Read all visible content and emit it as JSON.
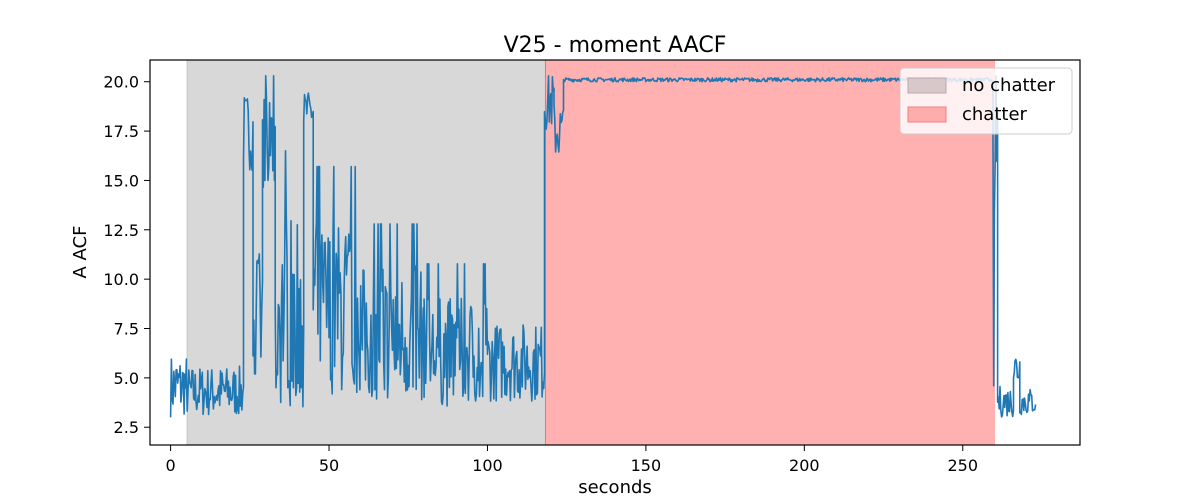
{
  "chart_data": {
    "type": "line",
    "title": "V25 - moment AACF",
    "xlabel": "seconds",
    "ylabel": "A ACF",
    "xlim": [
      -6.5,
      287
    ],
    "ylim": [
      1.6,
      21.1
    ],
    "xticks": [
      0,
      50,
      100,
      150,
      200,
      250
    ],
    "yticks": [
      2.5,
      5.0,
      7.5,
      10.0,
      12.5,
      15.0,
      17.5,
      20.0
    ],
    "ytick_labels": [
      "2.5",
      "5.0",
      "7.5",
      "10.0",
      "12.5",
      "15.0",
      "17.5",
      "20.0"
    ],
    "grid": false,
    "legend_position": "top-right",
    "regions": [
      {
        "name": "no chatter",
        "x_start": 5.2,
        "x_end": 118.3,
        "color": "#d8d8d8"
      },
      {
        "name": "chatter",
        "x_start": 118.3,
        "x_end": 260.2,
        "color": "#ffb0b0"
      }
    ],
    "series": [
      {
        "color": "#1f77b4",
        "x_range": [
          0,
          273
        ],
        "segments": [
          {
            "x0": 0,
            "x1": 5,
            "center": 4.6,
            "amplitude": 1.6
          },
          {
            "x0": 5,
            "x1": 23,
            "center": 4.3,
            "amplitude": 1.3
          },
          {
            "x0": 23,
            "x1": 26,
            "center": 17.5,
            "amplitude": 2.0
          },
          {
            "x0": 26,
            "x1": 29,
            "center": 8.0,
            "amplitude": 3.5
          },
          {
            "x0": 29,
            "x1": 33,
            "center": 17.0,
            "amplitude": 2.5
          },
          {
            "x0": 33,
            "x1": 42,
            "center": 8.5,
            "amplitude": 5.0
          },
          {
            "x0": 42,
            "x1": 45,
            "center": 18.5,
            "amplitude": 1.0
          },
          {
            "x0": 45,
            "x1": 60,
            "center": 8.5,
            "amplitude": 4.5
          },
          {
            "x0": 60,
            "x1": 80,
            "center": 7.2,
            "amplitude": 3.5
          },
          {
            "x0": 80,
            "x1": 100,
            "center": 6.3,
            "amplitude": 2.8
          },
          {
            "x0": 100,
            "x1": 118,
            "center": 5.8,
            "amplitude": 2.0
          },
          {
            "x0": 118,
            "x1": 121,
            "center": 19.0,
            "amplitude": 1.5
          },
          {
            "x0": 121,
            "x1": 124,
            "center": 17.5,
            "amplitude": 1.5
          },
          {
            "x0": 124,
            "x1": 259.5,
            "center": 20.1,
            "amplitude": 0.1
          },
          {
            "x0": 259.5,
            "x1": 261,
            "center": 11.0,
            "amplitude": 8.0
          },
          {
            "x0": 261,
            "x1": 266,
            "center": 3.8,
            "amplitude": 0.8
          },
          {
            "x0": 266,
            "x1": 268,
            "center": 5.5,
            "amplitude": 1.0
          },
          {
            "x0": 268,
            "x1": 273,
            "center": 3.8,
            "amplitude": 0.7
          }
        ]
      }
    ]
  }
}
